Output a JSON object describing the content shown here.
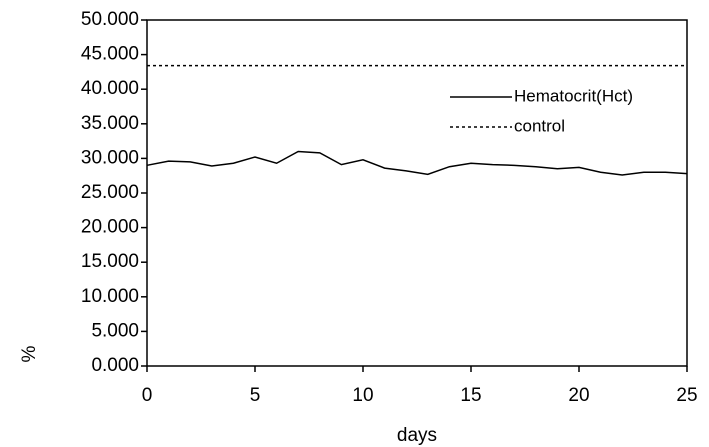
{
  "chart_data": {
    "type": "line",
    "x_label": "days",
    "y_label": "%",
    "xlim": [
      0,
      25
    ],
    "xticks": [
      0,
      5,
      10,
      15,
      20,
      25
    ],
    "ylim": [
      0,
      50
    ],
    "yticks": [
      {
        "value": 0,
        "label": "0.000"
      },
      {
        "value": 5,
        "label": "5.000"
      },
      {
        "value": 10,
        "label": "10.000"
      },
      {
        "value": 15,
        "label": "15.000"
      },
      {
        "value": 20,
        "label": "20.000"
      },
      {
        "value": 25,
        "label": "25.000"
      },
      {
        "value": 30,
        "label": "30.000"
      },
      {
        "value": 35,
        "label": "35.000"
      },
      {
        "value": 40,
        "label": "40.000"
      },
      {
        "value": 45,
        "label": "45.000"
      },
      {
        "value": 50,
        "label": "50.000"
      }
    ],
    "legend": "upper right",
    "series": [
      {
        "name": "Hematocrit(Hct)",
        "color": "#000000",
        "dash": "solid",
        "x": [
          0,
          1,
          2,
          3,
          4,
          5,
          6,
          7,
          8,
          9,
          10,
          11,
          12,
          13,
          14,
          15,
          16,
          17,
          18,
          19,
          20,
          21,
          22,
          23,
          24,
          25
        ],
        "values": [
          29.0,
          29.6,
          29.5,
          28.9,
          29.3,
          30.2,
          29.3,
          31.0,
          30.8,
          29.1,
          29.8,
          28.6,
          28.2,
          27.7,
          28.8,
          29.3,
          29.1,
          29.0,
          28.8,
          28.5,
          28.7,
          28.0,
          27.6,
          28.0,
          28.0,
          27.8
        ]
      },
      {
        "name": "control",
        "color": "#000000",
        "dash": "dotted",
        "x": [
          0,
          25
        ],
        "values": [
          43.4,
          43.4
        ]
      }
    ]
  }
}
